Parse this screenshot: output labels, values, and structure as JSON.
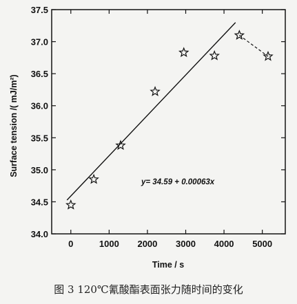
{
  "chart_data": {
    "type": "scatter",
    "xlabel": "Time / s",
    "ylabel": "Surface tension /( mJ/m²)",
    "xlim": [
      -500,
      5600
    ],
    "ylim": [
      34.0,
      37.5
    ],
    "xticks": [
      0,
      1000,
      2000,
      3000,
      4000,
      5000
    ],
    "xtick_labels": [
      "0",
      "1000",
      "2000",
      "3000",
      "4000",
      "5000"
    ],
    "yticks": [
      34.0,
      34.5,
      35.0,
      35.5,
      36.0,
      36.5,
      37.0,
      37.5
    ],
    "ytick_labels": [
      "34.0",
      "34.5",
      "35.0",
      "35.5",
      "36.0",
      "36.5",
      "37.0",
      "37.5"
    ],
    "points": [
      {
        "x": 0,
        "y": 34.45
      },
      {
        "x": 600,
        "y": 34.85
      },
      {
        "x": 1300,
        "y": 35.38
      },
      {
        "x": 2200,
        "y": 36.22
      },
      {
        "x": 2950,
        "y": 36.83
      },
      {
        "x": 3750,
        "y": 36.78
      },
      {
        "x": 4400,
        "y": 37.1
      },
      {
        "x": 5150,
        "y": 36.77
      }
    ],
    "fit_line": {
      "intercept": 34.59,
      "slope": 0.00063,
      "x_range": [
        -100,
        4300
      ]
    },
    "dashed_segment": {
      "x": [
        4400,
        5150
      ],
      "y": [
        37.1,
        36.77
      ]
    },
    "equation_label": "y= 34.59 + 0.00063x",
    "marker": "star",
    "grid": false
  },
  "caption": "图 3  120℃氰酸酯表面张力随时间的变化"
}
